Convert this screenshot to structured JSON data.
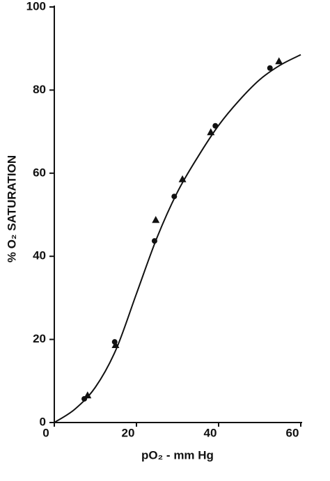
{
  "chart_data": {
    "type": "scatter",
    "xlabel": "pO₂ - mm Hg",
    "ylabel": "% O₂ SATURATION",
    "xlim": [
      0,
      60
    ],
    "xticks": [
      0,
      20,
      40,
      60
    ],
    "ylim": [
      0,
      100
    ],
    "yticks": [
      0,
      20,
      40,
      60,
      80,
      100
    ],
    "grid": false,
    "series": [
      {
        "marker": "line",
        "color": "#111111",
        "x": [
          0,
          5,
          10,
          15,
          20,
          25,
          30,
          35,
          40,
          45,
          50,
          55,
          60
        ],
        "values": [
          0,
          3.2,
          8.5,
          17.5,
          31,
          44.5,
          55.5,
          64,
          71.5,
          77.5,
          82.5,
          86,
          88.5
        ]
      },
      {
        "marker": "circle",
        "color": "#111111",
        "x": [
          7.3,
          14.7,
          24.4,
          29.2,
          39.2,
          52.5
        ],
        "values": [
          5.7,
          19.4,
          43.7,
          54.4,
          71.4,
          85.3
        ]
      },
      {
        "marker": "triangle",
        "color": "#111111",
        "x": [
          8.1,
          14.9,
          24.7,
          31.2,
          38.1,
          54.7
        ],
        "values": [
          6.5,
          18.6,
          48.7,
          58.5,
          69.8,
          86.9
        ]
      }
    ]
  }
}
